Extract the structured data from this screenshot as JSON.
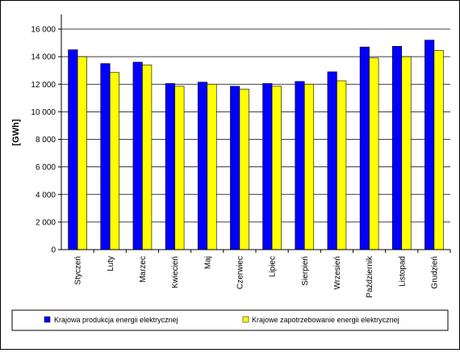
{
  "chart_data": {
    "type": "bar",
    "ylabel": "[GWh]",
    "ylim": [
      0,
      16000
    ],
    "y_ticks": [
      "0",
      "2 000",
      "4 000",
      "6 000",
      "8 000",
      "10 000",
      "12 000",
      "14 000",
      "16 000"
    ],
    "y_tick_values": [
      0,
      2000,
      4000,
      6000,
      8000,
      10000,
      12000,
      14000,
      16000
    ],
    "grid": "horizontal",
    "legend_position": "bottom",
    "categories": [
      "Styczeń",
      "Luty",
      "Marzec",
      "Kwiecień",
      "Maj",
      "Czerwiec",
      "Lipiec",
      "Sierpień",
      "Wrzesień",
      "Październik",
      "Listopad",
      "Grudzień"
    ],
    "series": [
      {
        "name": "Krajowa produkcja energii elektrycznej",
        "color": "#0000ff",
        "values": [
          14500,
          13500,
          13600,
          12050,
          12150,
          11850,
          12050,
          12200,
          12900,
          14700,
          14750,
          15200
        ]
      },
      {
        "name": "Krajowe zapotrzebowanie energii elektrycznej",
        "color": "#ffff00",
        "values": [
          14000,
          12850,
          13400,
          11850,
          12000,
          11650,
          11850,
          12000,
          12250,
          13900,
          14000,
          14450
        ]
      }
    ],
    "plot_background": "#ffffff",
    "bar_outline": "#000000"
  }
}
